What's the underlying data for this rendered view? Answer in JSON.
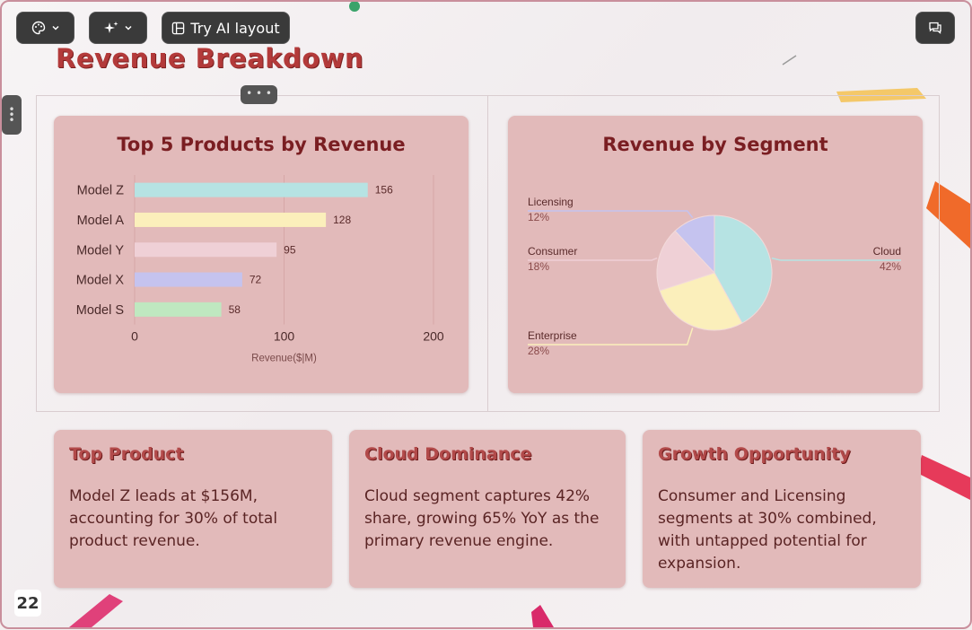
{
  "toolbar": {
    "theme_button": {
      "icon": "palette-icon",
      "dropdown_icon": "chevron-down-icon"
    },
    "ai_button": {
      "icon": "sparkle-icon",
      "dropdown_icon": "chevron-down-icon"
    },
    "try_ai_layout_label": "Try AI layout",
    "comments_icon": "comments-icon"
  },
  "slide": {
    "title": "Revenue Breakdown",
    "page_number": "22"
  },
  "colors": {
    "card_bg": "#e2baba",
    "title_dark": "#7a1e22",
    "title_red": "#b33a3a",
    "bar_cyan": "#b6e3e3",
    "bar_yellow": "#fbefbb",
    "bar_pink": "#efd0d6",
    "bar_lavender": "#c5c3ef",
    "bar_green": "#bfe8c0"
  },
  "bar_chart": {
    "title": "Top 5 Products by Revenue",
    "chart_data": {
      "type": "bar",
      "orientation": "horizontal",
      "categories": [
        "Model Z",
        "Model A",
        "Model Y",
        "Model X",
        "Model S"
      ],
      "values": [
        156,
        128,
        95,
        72,
        58
      ],
      "colors": [
        "#b6e3e3",
        "#fbefbb",
        "#efd0d6",
        "#c5c3ef",
        "#bfe8c0"
      ],
      "xlabel": "Revenue($|M)",
      "xlim": [
        0,
        200
      ],
      "xticks": [
        "0",
        "100",
        "200"
      ],
      "grid": true
    }
  },
  "pie_chart": {
    "title": "Revenue by Segment",
    "chart_data": {
      "type": "pie",
      "labels": [
        "Cloud",
        "Enterprise",
        "Consumer",
        "Licensing"
      ],
      "values": [
        42,
        28,
        18,
        12
      ],
      "value_labels": [
        "42%",
        "28%",
        "18%",
        "12%"
      ],
      "colors": [
        "#b6e3e3",
        "#fbefbb",
        "#efd0d6",
        "#c5c3ef"
      ]
    }
  },
  "insights": [
    {
      "title": "Top Product",
      "body": "Model Z leads at $156M, accounting for 30% of total product revenue."
    },
    {
      "title": "Cloud Dominance",
      "body": "Cloud segment captures 42% share, growing 65% YoY as the primary revenue engine."
    },
    {
      "title": "Growth Opportunity",
      "body": "Consumer and Licensing segments at 30% combined, with untapped potential for expansion."
    }
  ]
}
